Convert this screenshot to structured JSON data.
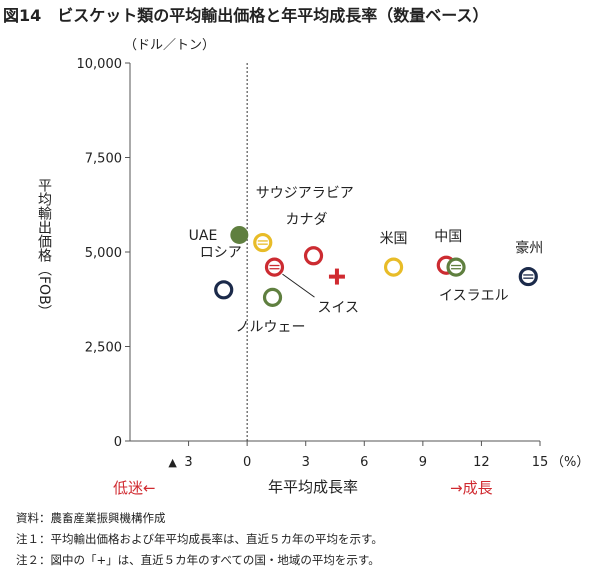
{
  "figure": {
    "title": "図14　ビスケット類の平均輸出価格と年平均成長率（数量ベース）",
    "unit": "（ドル／トン）",
    "declining_label": "低迷←",
    "growth_label": "→成長",
    "negative_marker": "▲",
    "colors": {
      "navy": "#1b2a4a",
      "red": "#cc2b31",
      "yellow": "#e8bc28",
      "green": "#5f7f3f",
      "accent_red": "#d02a30"
    }
  },
  "chart_data": {
    "type": "scatter",
    "xlabel": "年平均成長率",
    "ylabel": "平均輸出価格（FOB）",
    "x_unit": "（%）",
    "xlim": [
      -6,
      15
    ],
    "ylim": [
      0,
      10000
    ],
    "x_ticks": [
      -3,
      0,
      3,
      6,
      9,
      12,
      15
    ],
    "x_tick_labels": [
      "3",
      "0",
      "3",
      "6",
      "9",
      "12",
      "15"
    ],
    "y_ticks": [
      0,
      2500,
      5000,
      7500,
      10000
    ],
    "y_tick_labels": [
      "0",
      "2,500",
      "5,000",
      "7,500",
      "10,000"
    ],
    "reference_line_x": 0,
    "points": [
      {
        "label": "UAE",
        "x": -0.4,
        "y": 5450,
        "style": "filled",
        "color": "#5f7f3f"
      },
      {
        "label": "サウジアラビア",
        "x": 0.8,
        "y": 5250,
        "style": "ring-bar",
        "color": "#e8bc28"
      },
      {
        "label": "ロシア",
        "x": -1.2,
        "y": 4000,
        "style": "ring",
        "color": "#1b2a4a"
      },
      {
        "label": "スイス",
        "x": 1.4,
        "y": 4600,
        "style": "ring-bar",
        "color": "#cc2b31"
      },
      {
        "label": "ノルウェー",
        "x": 1.3,
        "y": 3800,
        "style": "ring",
        "color": "#5f7f3f"
      },
      {
        "label": "カナダ",
        "x": 3.4,
        "y": 4900,
        "style": "ring",
        "color": "#cc2b31"
      },
      {
        "label": "",
        "x": 4.6,
        "y": 4350,
        "style": "cross",
        "color": "#d02a30"
      },
      {
        "label": "米国",
        "x": 7.5,
        "y": 4600,
        "style": "ring",
        "color": "#e8bc28"
      },
      {
        "label": "中国",
        "x": 10.2,
        "y": 4650,
        "style": "ring",
        "color": "#cc2b31"
      },
      {
        "label": "イスラエル",
        "x": 10.7,
        "y": 4600,
        "style": "ring-bar",
        "color": "#5f7f3f"
      },
      {
        "label": "豪州",
        "x": 14.4,
        "y": 4350,
        "style": "ring-bar",
        "color": "#1b2a4a"
      }
    ]
  },
  "notes": [
    "資料：農畜産業振興機構作成",
    "注１：平均輸出価格および年平均成長率は、直近５カ年の平均を示す。",
    "注２：図中の「+」は、直近５カ年のすべての国・地域の平均を示す。"
  ]
}
